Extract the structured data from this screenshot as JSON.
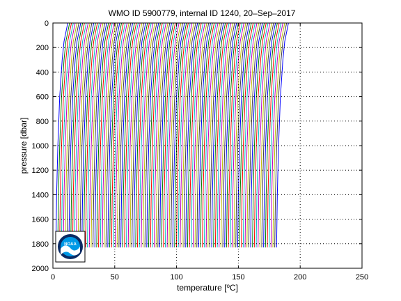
{
  "chart_data": {
    "type": "line",
    "title": "WMO ID 5900779, internal ID 1240, 20–Sep–2017",
    "xlabel_prefix": "temperature [",
    "xlabel_unit": "o",
    "xlabel_suffix": "C]",
    "ylabel": "pressure [dbar]",
    "xlim": [
      0,
      250
    ],
    "ylim": [
      0,
      2000
    ],
    "y_reversed": true,
    "x_ticks": [
      "0",
      "50",
      "100",
      "150",
      "200",
      "250"
    ],
    "y_ticks": [
      "0",
      "200",
      "400",
      "600",
      "800",
      "1000",
      "1200",
      "1400",
      "1600",
      "1800",
      "2000"
    ],
    "grid": true,
    "series_colors": [
      "#0000ff",
      "#008000",
      "#ff0000",
      "#00bfbf",
      "#bf00bf",
      "#bfbf00",
      "#404040"
    ],
    "profiles": {
      "count": 120,
      "x_offset_start": 0,
      "x_offset_step": 1.5,
      "max_pressure": 1830,
      "base_profile": [
        {
          "p": 0,
          "t": 12.0
        },
        {
          "p": 50,
          "t": 11.0
        },
        {
          "p": 150,
          "t": 9.0
        },
        {
          "p": 300,
          "t": 7.5
        },
        {
          "p": 600,
          "t": 5.5
        },
        {
          "p": 1000,
          "t": 4.0
        },
        {
          "p": 1400,
          "t": 3.0
        },
        {
          "p": 1830,
          "t": 2.4
        }
      ]
    }
  },
  "logo": {
    "text": "NOAA",
    "colors": {
      "ring": "#0b2a63",
      "sky": "#0099e6",
      "bird": "#ffffff"
    }
  }
}
